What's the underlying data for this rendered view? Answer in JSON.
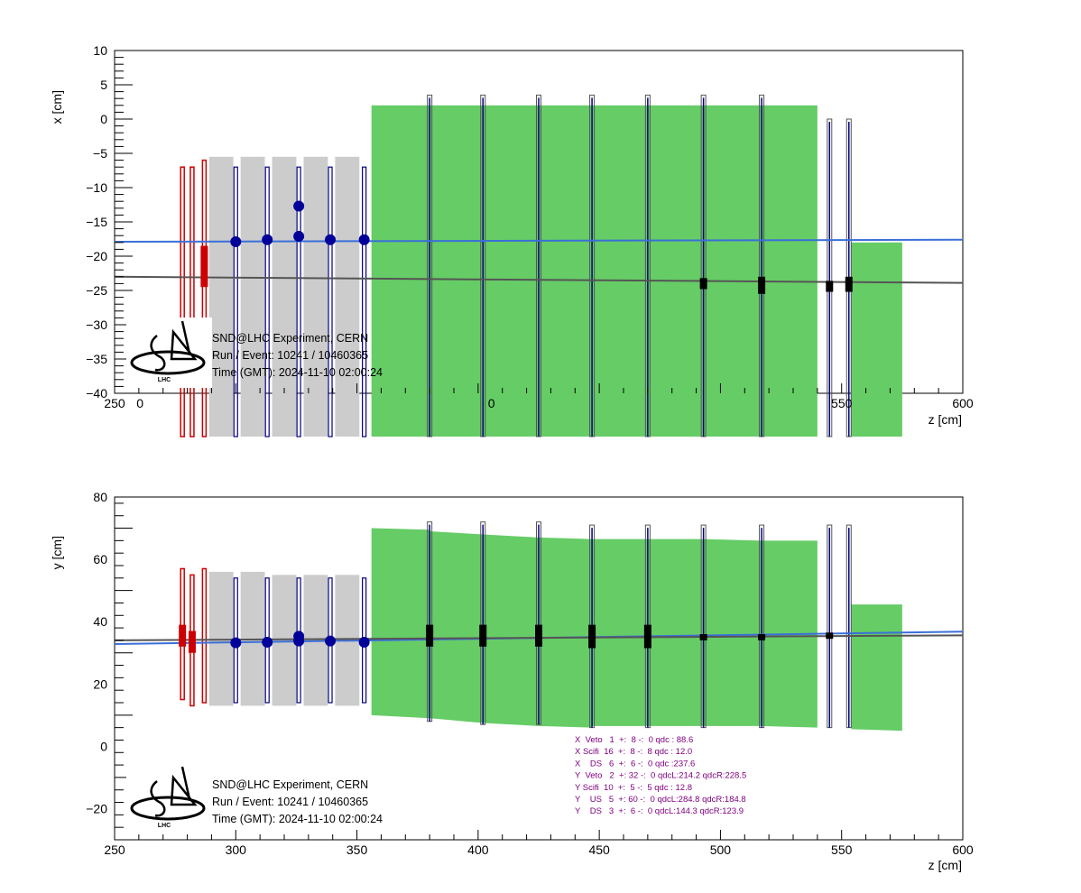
{
  "colors": {
    "veto": "#cc0000",
    "scifi_wall": "#cccccc",
    "iron": "#66cc66",
    "detector_outline": "#000080",
    "hit": "#000099",
    "track_blue": "#3a6fd8",
    "track_grey": "#555555",
    "ds_hit": "#000000",
    "summary_text": "#800080"
  },
  "logo": {
    "icon": "snd-lhc-logo-icon",
    "text": "LHC"
  },
  "chart_data": [
    {
      "type": "scatter",
      "view": "x-z projection",
      "xlabel": "z [cm]",
      "ylabel": "x [cm]",
      "xlim": [
        250,
        600
      ],
      "ylim": [
        -40,
        10
      ],
      "xticks": [
        250,
        300,
        350,
        400,
        450,
        500,
        550,
        600
      ],
      "yticks": [
        -40,
        -35,
        -30,
        -25,
        -20,
        -15,
        -10,
        -5,
        0,
        5,
        10
      ],
      "visible_x_tick_labels": [
        "250",
        "0",
        "0",
        "550",
        "600"
      ],
      "info": [
        "SND@LHC Experiment, CERN",
        "Run / Event: 10241 / 10460365",
        "Time (GMT): 2024-11-10 02:00:24"
      ],
      "veto_bars": [
        {
          "z": 278,
          "x1": -7,
          "x2": -47
        },
        {
          "z": 282,
          "x1": -7,
          "x2": -47
        },
        {
          "z": 287,
          "x1": -6,
          "x2": -47
        }
      ],
      "veto_hits": [
        {
          "z": 287,
          "x1": -18.5,
          "x2": -24.5
        }
      ],
      "scifi_walls": [
        {
          "z1": 289,
          "z2": 299
        },
        {
          "z1": 302,
          "z2": 312
        },
        {
          "z1": 315,
          "z2": 325
        },
        {
          "z1": 328,
          "z2": 338
        },
        {
          "z1": 341,
          "z2": 351
        }
      ],
      "scifi_planes": [
        {
          "z": 300,
          "x1": -7,
          "x2": -47
        },
        {
          "z": 313,
          "x1": -7,
          "x2": -47
        },
        {
          "z": 326,
          "x1": -7,
          "x2": -47
        },
        {
          "z": 339,
          "x1": -7,
          "x2": -47
        },
        {
          "z": 353,
          "x1": -7,
          "x2": -47
        }
      ],
      "scifi_hits": [
        {
          "z": 300,
          "x": -17.9
        },
        {
          "z": 313,
          "x": -17.6
        },
        {
          "z": 326,
          "x": -12.7
        },
        {
          "z": 326,
          "x": -17.1
        },
        {
          "z": 339,
          "x": -17.6
        },
        {
          "z": 353,
          "x": -17.6
        }
      ],
      "iron_blocks": [
        {
          "z1": 356,
          "z2": 540,
          "x1": 2,
          "x2": -47
        },
        {
          "z1": 554,
          "z2": 575,
          "x1": -18,
          "x2": -47
        }
      ],
      "detector_planes": [
        {
          "z": 380,
          "x1": 3.5,
          "x2": -47
        },
        {
          "z": 402,
          "x1": 3.5,
          "x2": -47
        },
        {
          "z": 425,
          "x1": 3.5,
          "x2": -47
        },
        {
          "z": 447,
          "x1": 3.5,
          "x2": -47
        },
        {
          "z": 470,
          "x1": 3.5,
          "x2": -47
        },
        {
          "z": 493,
          "x1": 3.5,
          "x2": -47
        },
        {
          "z": 517,
          "x1": 3.5,
          "x2": -47
        },
        {
          "z": 545,
          "x1": 0,
          "x2": -47
        },
        {
          "z": 553,
          "x1": 0,
          "x2": -47
        }
      ],
      "ds_hits": [
        {
          "z": 493,
          "x1": -23.2,
          "x2": -24.8
        },
        {
          "z": 517,
          "x1": -23,
          "x2": -25.5
        },
        {
          "z": 545,
          "x1": -23.6,
          "x2": -25.2
        },
        {
          "z": 553,
          "x1": -23,
          "x2": -25.2
        }
      ],
      "tracks": [
        {
          "color": "blue",
          "z1": 250,
          "v1": -17.9,
          "z2": 600,
          "v2": -17.6
        },
        {
          "color": "grey",
          "z1": 250,
          "v1": -23.0,
          "z2": 600,
          "v2": -23.9
        }
      ]
    },
    {
      "type": "scatter",
      "view": "y-z projection",
      "xlabel": "z [cm]",
      "ylabel": "y [cm]",
      "xlim": [
        250,
        600
      ],
      "ylim": [
        -30,
        80
      ],
      "xticks": [
        250,
        300,
        350,
        400,
        450,
        500,
        550,
        600
      ],
      "yticks": [
        -20,
        0,
        20,
        40,
        60,
        80
      ],
      "info": [
        "SND@LHC Experiment, CERN",
        "Run / Event: 10241 / 10460365",
        "Time (GMT): 2024-11-10 02:00:24"
      ],
      "summary": [
        "X  Veto   1  +:  8 -:  0 qdc : 88.6",
        "X Scifi  16  +:  8 -:  8 qdc : 12.0",
        "X    DS   6  +:  6 -:  0 qdc :237.6",
        "Y  Veto   2  +: 32 -:  0 qdcL:214.2 qdcR:228.5",
        "Y Scifi  10  +:  5 -:  5 qdc : 12.8",
        "Y    US   5  +: 60 -:  0 qdcL:284.8 qdcR:184.8",
        "Y    DS   3  +:  6 -:  0 qdcL:144.3 qdcR:123.9"
      ],
      "veto_bars": [
        {
          "z": 278,
          "y1": 57,
          "y2": 15
        },
        {
          "z": 282,
          "y1": 55,
          "y2": 13
        },
        {
          "z": 287,
          "y1": 57,
          "y2": 14
        }
      ],
      "veto_hits": [
        {
          "z": 278,
          "y1": 39,
          "y2": 32
        },
        {
          "z": 282,
          "y1": 37,
          "y2": 30
        }
      ],
      "scifi_walls": [
        {
          "z1": 289,
          "z2": 299,
          "y1": 56,
          "y2": 13
        },
        {
          "z1": 302,
          "z2": 312,
          "y1": 56,
          "y2": 13
        },
        {
          "z1": 315,
          "z2": 325,
          "y1": 55,
          "y2": 13
        },
        {
          "z1": 328,
          "z2": 338,
          "y1": 55,
          "y2": 13
        },
        {
          "z1": 341,
          "z2": 351,
          "y1": 55,
          "y2": 13
        }
      ],
      "scifi_planes": [
        {
          "z": 300,
          "y1": 54,
          "y2": 14
        },
        {
          "z": 313,
          "y1": 54,
          "y2": 14
        },
        {
          "z": 326,
          "y1": 54,
          "y2": 14
        },
        {
          "z": 339,
          "y1": 54,
          "y2": 14
        },
        {
          "z": 353,
          "y1": 54,
          "y2": 14
        }
      ],
      "scifi_hits": [
        {
          "z": 300,
          "y": 33.2
        },
        {
          "z": 313,
          "y": 33.4
        },
        {
          "z": 326,
          "y": 35.3
        },
        {
          "z": 326,
          "y": 33.8
        },
        {
          "z": 339,
          "y": 33.8
        },
        {
          "z": 353,
          "y": 33.4
        }
      ],
      "iron_blocks": [
        {
          "z1": 356,
          "z2": 380,
          "top1": 70,
          "top2": 69.5,
          "bot1": 10,
          "bot2": 9
        },
        {
          "z1": 380,
          "z2": 402,
          "top1": 69,
          "top2": 68,
          "bot1": 9,
          "bot2": 7.5
        },
        {
          "z1": 402,
          "z2": 425,
          "top1": 68,
          "top2": 67,
          "bot1": 7.5,
          "bot2": 6.5
        },
        {
          "z1": 425,
          "z2": 447,
          "top1": 67,
          "top2": 66.5,
          "bot1": 6.5,
          "bot2": 6
        },
        {
          "z1": 447,
          "z2": 470,
          "top1": 66.5,
          "top2": 66.5,
          "bot1": 6.5,
          "bot2": 6.5
        },
        {
          "z1": 470,
          "z2": 493,
          "top1": 66.5,
          "top2": 66.5,
          "bot1": 6.5,
          "bot2": 6.5
        },
        {
          "z1": 493,
          "z2": 517,
          "top1": 66.5,
          "top2": 66,
          "bot1": 6.5,
          "bot2": 6.5
        },
        {
          "z1": 517,
          "z2": 540,
          "top1": 66,
          "top2": 66,
          "bot1": 6.5,
          "bot2": 6
        },
        {
          "z1": 554,
          "z2": 575,
          "top1": 45.5,
          "top2": 45.5,
          "bot1": 5.5,
          "bot2": 5
        }
      ],
      "detector_planes": [
        {
          "z": 380,
          "y1": 72,
          "y2": 8
        },
        {
          "z": 402,
          "y1": 72,
          "y2": 7
        },
        {
          "z": 425,
          "y1": 72,
          "y2": 7
        },
        {
          "z": 447,
          "y1": 71,
          "y2": 6
        },
        {
          "z": 470,
          "y1": 71,
          "y2": 6
        },
        {
          "z": 493,
          "y1": 71,
          "y2": 6
        },
        {
          "z": 517,
          "y1": 71,
          "y2": 6
        },
        {
          "z": 545,
          "y1": 71,
          "y2": 6
        },
        {
          "z": 553,
          "y1": 71,
          "y2": 6
        }
      ],
      "us_hits": [
        {
          "z": 380,
          "y1": 39,
          "y2": 32
        },
        {
          "z": 402,
          "y1": 39,
          "y2": 32
        },
        {
          "z": 425,
          "y1": 39,
          "y2": 32
        },
        {
          "z": 447,
          "y1": 39,
          "y2": 31.5
        },
        {
          "z": 470,
          "y1": 39,
          "y2": 31.5
        }
      ],
      "ds_hits": [
        {
          "z": 493,
          "y1": 36,
          "y2": 34
        },
        {
          "z": 517,
          "y1": 36,
          "y2": 34
        },
        {
          "z": 545,
          "y1": 36.5,
          "y2": 34.5
        }
      ],
      "tracks": [
        {
          "color": "blue",
          "z1": 250,
          "v1": 32.8,
          "z2": 600,
          "v2": 36.8
        },
        {
          "color": "grey",
          "z1": 250,
          "v1": 34.0,
          "z2": 600,
          "v2": 35.6
        }
      ]
    }
  ]
}
